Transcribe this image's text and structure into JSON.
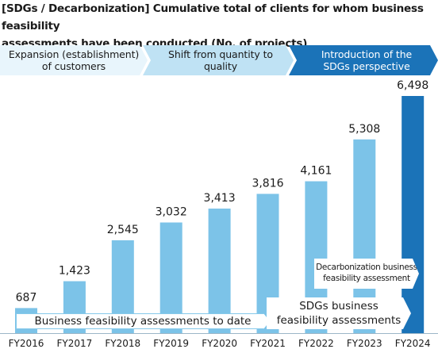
{
  "title": "[SDGs / Decarbonization] Cumulative total of clients for whom business feasibility\nassessments have been conducted (No. of projects)",
  "phases": [
    {
      "label": "Expansion (establishment)\nof customers"
    },
    {
      "label": "Shift from quantity to\nquality"
    },
    {
      "label": "Introduction of the\nSDGs perspective"
    }
  ],
  "notes": {
    "total": "Business feasibility assessments to date",
    "sdgs": "SDGs business\nfeasibility assessments",
    "decarb": "Decarbonization business\nfeasibility assessment"
  },
  "colors": {
    "bar": "#7cc3e8",
    "bar_highlight": "#1b73b8",
    "phase1": "#e8f5fc",
    "phase2": "#bfe2f4",
    "phase3": "#1b73b8"
  },
  "chart_data": {
    "type": "bar",
    "title": "[SDGs / Decarbonization] Cumulative total of clients for whom business feasibility assessments have been conducted (No. of projects)",
    "categories": [
      "FY2016",
      "FY2017",
      "FY2018",
      "FY2019",
      "FY2020",
      "FY2021",
      "FY2022",
      "FY2023",
      "FY2024"
    ],
    "values": [
      687,
      1423,
      2545,
      3032,
      3413,
      3816,
      4161,
      5308,
      6498
    ],
    "value_labels": [
      "687",
      "1,423",
      "2,545",
      "3,032",
      "3,413",
      "3,816",
      "4,161",
      "5,308",
      "6,498"
    ],
    "highlight_index": 8,
    "ylim": [
      0,
      6498
    ],
    "grid": false,
    "xlabel": "",
    "ylabel": ""
  }
}
